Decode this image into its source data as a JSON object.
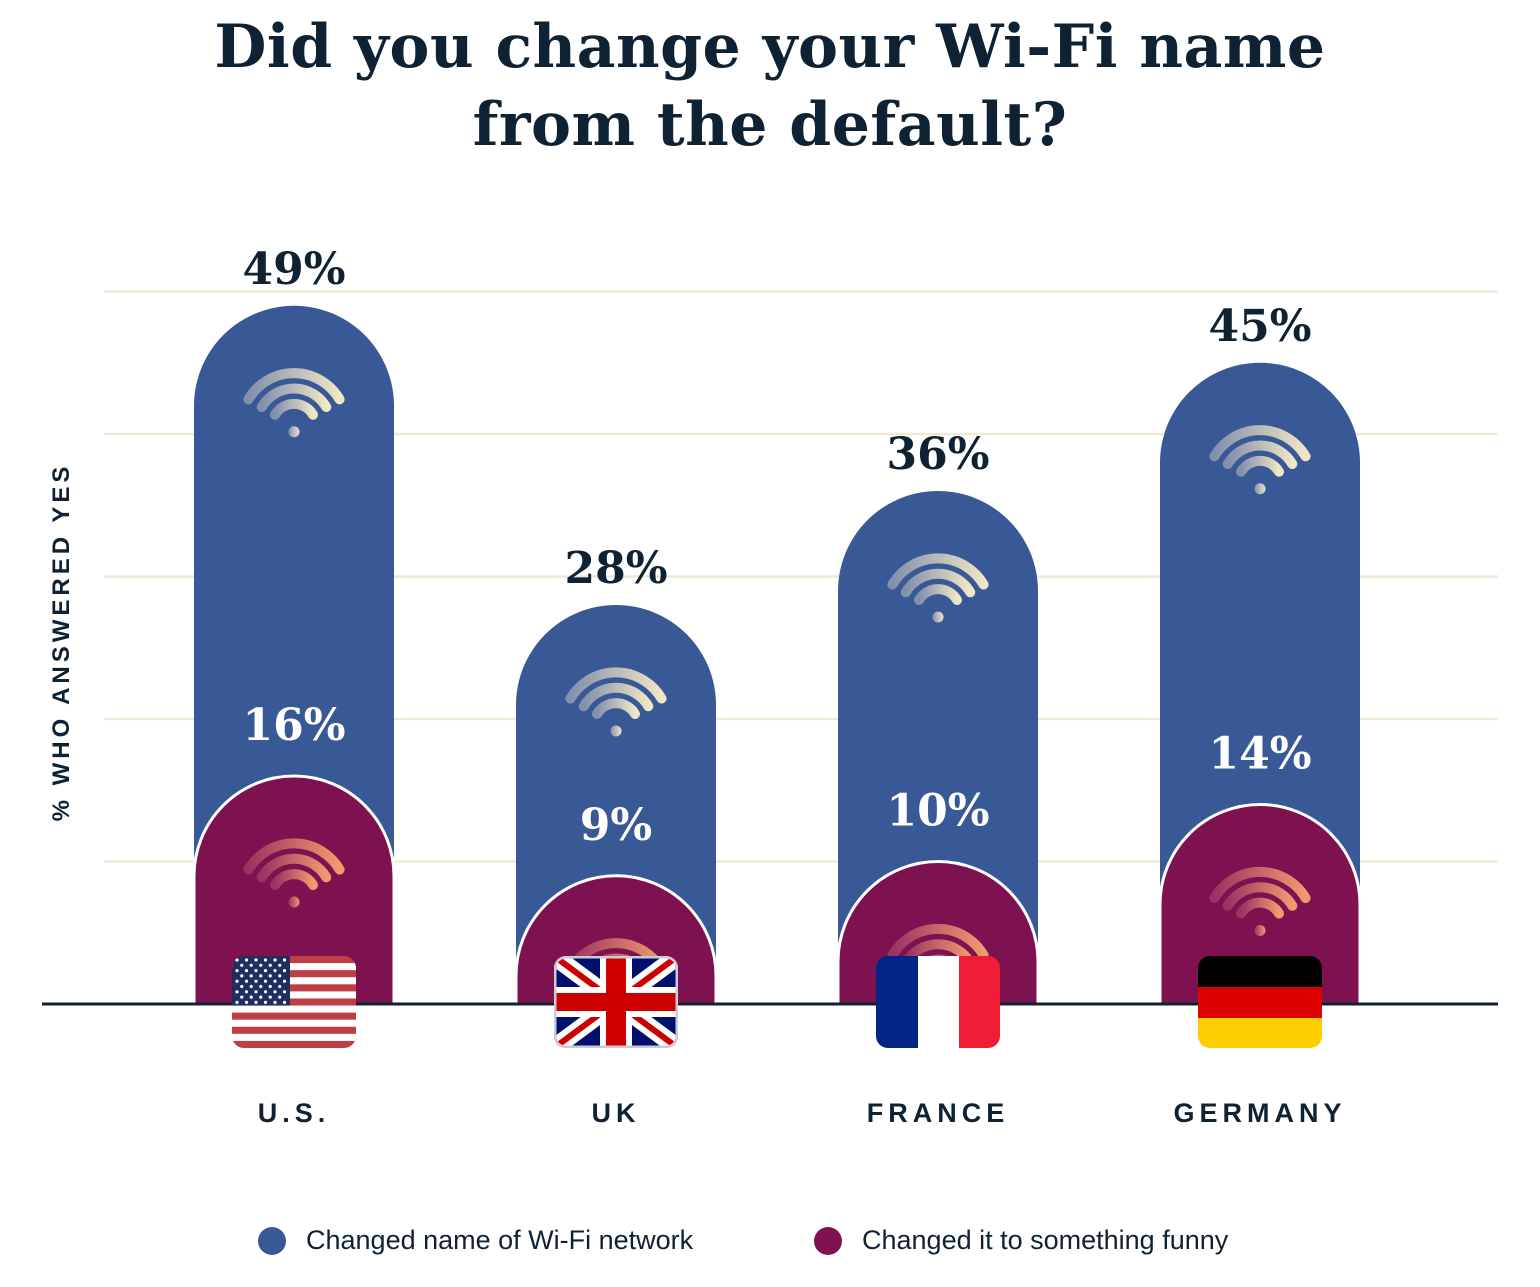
{
  "chart_data": {
    "type": "bar",
    "title": [
      "Did you change your Wi-Fi name",
      "from the default?"
    ],
    "ylabel": "% WHO ANSWERED YES",
    "xlabel": "",
    "categories": [
      "U.S.",
      "UK",
      "FRANCE",
      "GERMANY"
    ],
    "series": [
      {
        "name": "Changed name of Wi-Fi network",
        "values": [
          49,
          28,
          36,
          45
        ],
        "labels": [
          "49%",
          "28%",
          "36%",
          "45%"
        ],
        "color": "#385995"
      },
      {
        "name": "Changed it to something funny",
        "values": [
          16,
          9,
          10,
          14
        ],
        "labels": [
          "16%",
          "9%",
          "10%",
          "14%"
        ],
        "color": "#7e1150"
      }
    ],
    "ylim": [
      0,
      50
    ],
    "gridlines": [
      10,
      20,
      30,
      40,
      50
    ],
    "grid": true,
    "legend_position": "bottom",
    "flags": [
      "us-flag",
      "uk-flag",
      "france-flag",
      "germany-flag"
    ],
    "bar_style": "rounded-top overlapping bars with wifi-icon",
    "colors": {
      "text": "#0f2233",
      "grid": "#efe9d4",
      "axis": "#0f2233"
    }
  }
}
